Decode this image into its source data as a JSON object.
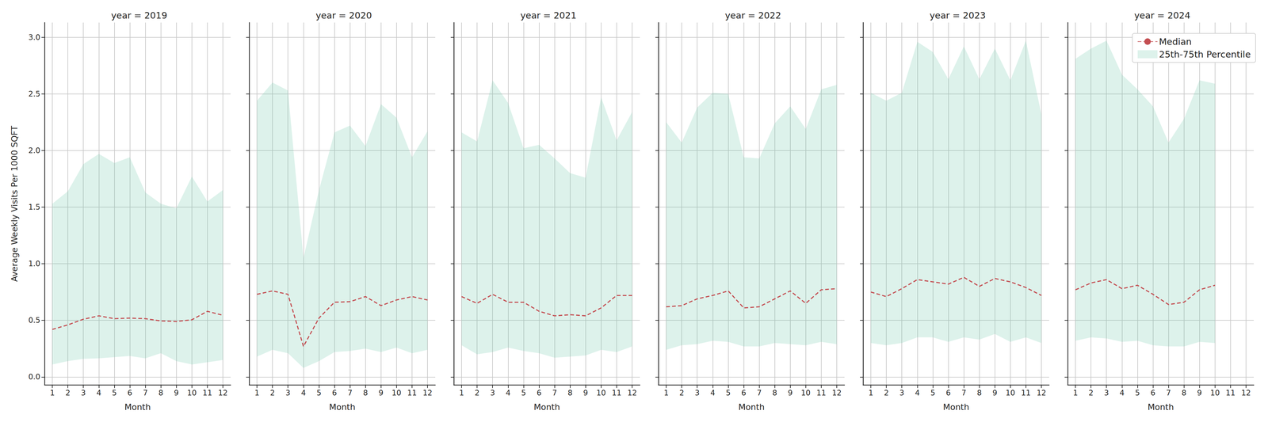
{
  "chart_data": [
    {
      "type": "line",
      "title": "year = 2019",
      "ylabel": "Average Weekly Visits Per 1000 SQFT",
      "xlabel": "Month",
      "x": [
        1,
        2,
        3,
        4,
        5,
        6,
        7,
        8,
        9,
        10,
        11,
        12
      ],
      "xlim": [
        0.5,
        12.5
      ],
      "ylim": [
        -0.07,
        3.13
      ],
      "xticks": [
        1,
        2,
        3,
        4,
        5,
        6,
        7,
        8,
        9,
        10,
        11,
        12
      ],
      "yticks": [
        {
          "value": 0,
          "label": "0.0"
        },
        {
          "value": 0.5,
          "label": "0.5"
        },
        {
          "value": 1,
          "label": "1.0"
        },
        {
          "value": 1.5,
          "label": "1.5"
        },
        {
          "value": 2,
          "label": "2.0"
        },
        {
          "value": 2.5,
          "label": "2.5"
        },
        {
          "value": 3,
          "label": "3.0"
        }
      ],
      "grid": true,
      "series": [
        {
          "name": "Median",
          "type": "line",
          "color": "#c44e52",
          "line_style": "dashed",
          "values": [
            0.42,
            0.46,
            0.51,
            0.54,
            0.515,
            0.52,
            0.515,
            0.495,
            0.49,
            0.505,
            0.58,
            0.545
          ]
        },
        {
          "name": "25th-75th Percentile",
          "type": "band",
          "color": "#66c2a5",
          "lower": [
            0.11,
            0.14,
            0.16,
            0.165,
            0.175,
            0.185,
            0.165,
            0.21,
            0.14,
            0.11,
            0.13,
            0.15
          ],
          "upper": [
            1.53,
            1.64,
            1.88,
            1.97,
            1.89,
            1.94,
            1.63,
            1.53,
            1.49,
            1.77,
            1.55,
            1.65
          ]
        }
      ]
    },
    {
      "type": "line",
      "title": "year = 2020",
      "xlabel": "Month",
      "tick_labels": "x",
      "x": [
        1,
        2,
        3,
        4,
        5,
        6,
        7,
        8,
        9,
        10,
        11,
        12
      ],
      "xlim": [
        0.5,
        12.5
      ],
      "ylim": [
        -0.07,
        3.13
      ],
      "xticks": [
        1,
        2,
        3,
        4,
        5,
        6,
        7,
        8,
        9,
        10,
        11,
        12
      ],
      "yticks": [
        {
          "value": 0,
          "label": "0.0"
        },
        {
          "value": 0.5,
          "label": "0.5"
        },
        {
          "value": 1,
          "label": "1.0"
        },
        {
          "value": 1.5,
          "label": "1.5"
        },
        {
          "value": 2,
          "label": "2.0"
        },
        {
          "value": 2.5,
          "label": "2.5"
        },
        {
          "value": 3,
          "label": "3.0"
        }
      ],
      "grid": true,
      "series": [
        {
          "name": "Median",
          "type": "line",
          "color": "#c44e52",
          "line_style": "dashed",
          "values": [
            0.73,
            0.76,
            0.73,
            0.27,
            0.52,
            0.66,
            0.665,
            0.71,
            0.63,
            0.68,
            0.71,
            0.68
          ]
        },
        {
          "name": "25th-75th Percentile",
          "type": "band",
          "color": "#66c2a5",
          "lower": [
            0.18,
            0.24,
            0.21,
            0.08,
            0.14,
            0.22,
            0.23,
            0.25,
            0.22,
            0.26,
            0.21,
            0.24
          ],
          "upper": [
            2.44,
            2.6,
            2.53,
            1.05,
            1.65,
            2.16,
            2.22,
            2.04,
            2.41,
            2.29,
            1.94,
            2.17
          ]
        }
      ]
    },
    {
      "type": "line",
      "title": "year = 2021",
      "xlabel": "Month",
      "tick_labels": "x",
      "x": [
        1,
        2,
        3,
        4,
        5,
        6,
        7,
        8,
        9,
        10,
        11,
        12
      ],
      "xlim": [
        0.5,
        12.5
      ],
      "ylim": [
        -0.07,
        3.13
      ],
      "xticks": [
        1,
        2,
        3,
        4,
        5,
        6,
        7,
        8,
        9,
        10,
        11,
        12
      ],
      "yticks": [
        {
          "value": 0,
          "label": "0.0"
        },
        {
          "value": 0.5,
          "label": "0.5"
        },
        {
          "value": 1,
          "label": "1.0"
        },
        {
          "value": 1.5,
          "label": "1.5"
        },
        {
          "value": 2,
          "label": "2.0"
        },
        {
          "value": 2.5,
          "label": "2.5"
        },
        {
          "value": 3,
          "label": "3.0"
        }
      ],
      "grid": true,
      "series": [
        {
          "name": "Median",
          "type": "line",
          "color": "#c44e52",
          "line_style": "dashed",
          "values": [
            0.71,
            0.65,
            0.73,
            0.66,
            0.66,
            0.58,
            0.54,
            0.55,
            0.54,
            0.61,
            0.72,
            0.72
          ]
        },
        {
          "name": "25th-75th Percentile",
          "type": "band",
          "color": "#66c2a5",
          "lower": [
            0.28,
            0.2,
            0.22,
            0.26,
            0.23,
            0.21,
            0.17,
            0.18,
            0.19,
            0.24,
            0.22,
            0.27
          ],
          "upper": [
            2.16,
            2.08,
            2.62,
            2.42,
            2.02,
            2.05,
            1.93,
            1.8,
            1.76,
            2.47,
            2.09,
            2.34
          ]
        }
      ]
    },
    {
      "type": "line",
      "title": "year = 2022",
      "xlabel": "Month",
      "tick_labels": "x",
      "x": [
        1,
        2,
        3,
        4,
        5,
        6,
        7,
        8,
        9,
        10,
        11,
        12
      ],
      "xlim": [
        0.5,
        12.5
      ],
      "ylim": [
        -0.07,
        3.13
      ],
      "xticks": [
        1,
        2,
        3,
        4,
        5,
        6,
        7,
        8,
        9,
        10,
        11,
        12
      ],
      "yticks": [
        {
          "value": 0,
          "label": "0.0"
        },
        {
          "value": 0.5,
          "label": "0.5"
        },
        {
          "value": 1,
          "label": "1.0"
        },
        {
          "value": 1.5,
          "label": "1.5"
        },
        {
          "value": 2,
          "label": "2.0"
        },
        {
          "value": 2.5,
          "label": "2.5"
        },
        {
          "value": 3,
          "label": "3.0"
        }
      ],
      "grid": true,
      "series": [
        {
          "name": "Median",
          "type": "line",
          "color": "#c44e52",
          "line_style": "dashed",
          "values": [
            0.62,
            0.63,
            0.69,
            0.72,
            0.76,
            0.61,
            0.62,
            0.69,
            0.76,
            0.65,
            0.77,
            0.78
          ]
        },
        {
          "name": "25th-75th Percentile",
          "type": "band",
          "color": "#66c2a5",
          "lower": [
            0.24,
            0.28,
            0.29,
            0.32,
            0.31,
            0.27,
            0.27,
            0.3,
            0.29,
            0.28,
            0.31,
            0.29
          ],
          "upper": [
            2.25,
            2.07,
            2.38,
            2.51,
            2.5,
            1.94,
            1.93,
            2.24,
            2.39,
            2.19,
            2.54,
            2.58
          ]
        }
      ]
    },
    {
      "type": "line",
      "title": "year = 2023",
      "xlabel": "Month",
      "tick_labels": "x",
      "x": [
        1,
        2,
        3,
        4,
        5,
        6,
        7,
        8,
        9,
        10,
        11,
        12
      ],
      "xlim": [
        0.5,
        12.5
      ],
      "ylim": [
        -0.07,
        3.13
      ],
      "xticks": [
        1,
        2,
        3,
        4,
        5,
        6,
        7,
        8,
        9,
        10,
        11,
        12
      ],
      "yticks": [
        {
          "value": 0,
          "label": "0.0"
        },
        {
          "value": 0.5,
          "label": "0.5"
        },
        {
          "value": 1,
          "label": "1.0"
        },
        {
          "value": 1.5,
          "label": "1.5"
        },
        {
          "value": 2,
          "label": "2.0"
        },
        {
          "value": 2.5,
          "label": "2.5"
        },
        {
          "value": 3,
          "label": "3.0"
        }
      ],
      "grid": true,
      "series": [
        {
          "name": "Median",
          "type": "line",
          "color": "#c44e52",
          "line_style": "dashed",
          "values": [
            0.75,
            0.71,
            0.78,
            0.86,
            0.84,
            0.82,
            0.88,
            0.8,
            0.87,
            0.84,
            0.79,
            0.72
          ]
        },
        {
          "name": "25th-75th Percentile",
          "type": "band",
          "color": "#66c2a5",
          "lower": [
            0.3,
            0.28,
            0.3,
            0.35,
            0.35,
            0.31,
            0.35,
            0.33,
            0.38,
            0.31,
            0.35,
            0.3
          ],
          "upper": [
            2.51,
            2.44,
            2.51,
            2.96,
            2.87,
            2.63,
            2.92,
            2.63,
            2.9,
            2.62,
            2.97,
            2.32
          ]
        }
      ]
    },
    {
      "type": "line",
      "title": "year = 2024",
      "xlabel": "Month",
      "tick_labels": "x",
      "legend": "upper right",
      "x": [
        1,
        2,
        3,
        4,
        5,
        6,
        7,
        8,
        9,
        10,
        11,
        12
      ],
      "xlim": [
        0.5,
        12.5
      ],
      "ylim": [
        -0.07,
        3.13
      ],
      "xticks": [
        1,
        2,
        3,
        4,
        5,
        6,
        7,
        8,
        9,
        10,
        11,
        12
      ],
      "yticks": [
        {
          "value": 0,
          "label": "0.0"
        },
        {
          "value": 0.5,
          "label": "0.5"
        },
        {
          "value": 1,
          "label": "1.0"
        },
        {
          "value": 1.5,
          "label": "1.5"
        },
        {
          "value": 2,
          "label": "2.0"
        },
        {
          "value": 2.5,
          "label": "2.5"
        },
        {
          "value": 3,
          "label": "3.0"
        }
      ],
      "grid": true,
      "series": [
        {
          "name": "Median",
          "type": "line",
          "color": "#c44e52",
          "line_style": "dashed",
          "values": [
            0.77,
            0.83,
            0.86,
            0.78,
            0.81,
            0.73,
            0.64,
            0.66,
            0.77,
            0.81,
            null,
            null
          ]
        },
        {
          "name": "25th-75th Percentile",
          "type": "band",
          "color": "#66c2a5",
          "lower": [
            0.32,
            0.35,
            0.34,
            0.31,
            0.32,
            0.28,
            0.27,
            0.27,
            0.31,
            0.3,
            null,
            null
          ],
          "upper": [
            2.81,
            2.9,
            2.97,
            2.67,
            2.54,
            2.39,
            2.07,
            2.28,
            2.62,
            2.59,
            null,
            null
          ]
        }
      ]
    }
  ]
}
